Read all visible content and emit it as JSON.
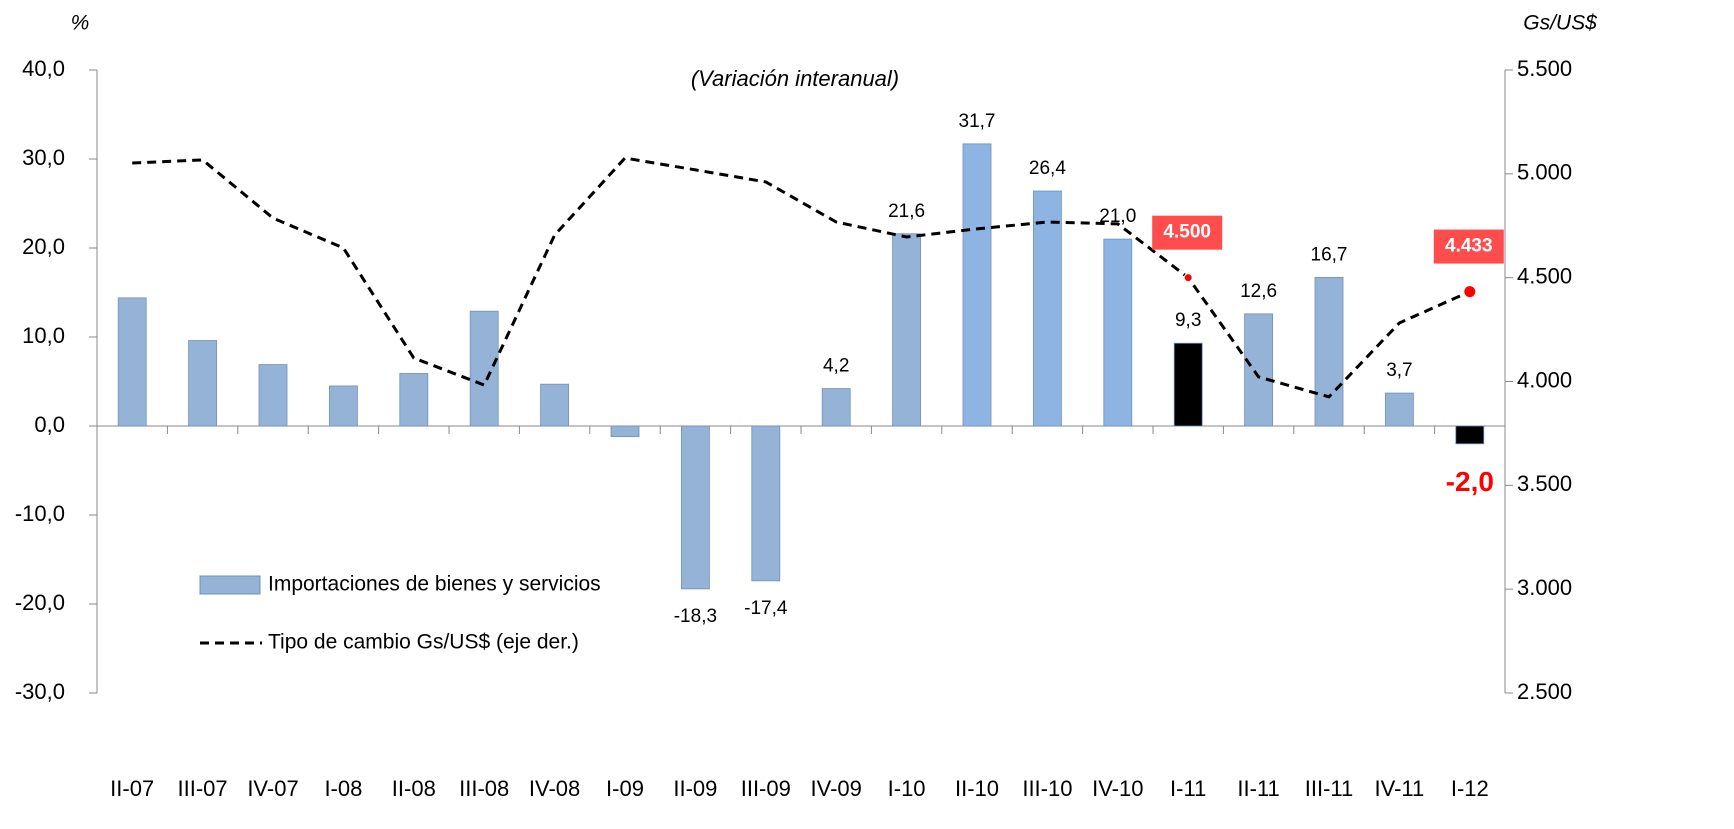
{
  "chart_data": {
    "type": "bar",
    "title": "(Variación interanual)",
    "y_axis_label": "%",
    "y2_axis_label": "Gs/US$",
    "categories": [
      "II-07",
      "III-07",
      "IV-07",
      "I-08",
      "II-08",
      "III-08",
      "IV-08",
      "I-09",
      "II-09",
      "III-09",
      "IV-09",
      "I-10",
      "II-10",
      "III-10",
      "IV-10",
      "I-11",
      "II-11",
      "III-11",
      "IV-11",
      "I-12"
    ],
    "series": [
      {
        "name": "Importaciones de bienes y servicios",
        "type": "bar",
        "color": "#95b3d7",
        "colors": [
          "#95b3d7",
          "#95b3d7",
          "#95b3d7",
          "#95b3d7",
          "#95b3d7",
          "#95b3d7",
          "#95b3d7",
          "#95b3d7",
          "#95b3d7",
          "#95b3d7",
          "#95b3d7",
          "#95b3d7",
          "#8db4e2",
          "#8db4e2",
          "#8db4e2",
          "#000000",
          "#95b3d7",
          "#95b3d7",
          "#95b3d7",
          "#000000"
        ],
        "values": [
          14.4,
          9.6,
          6.9,
          4.5,
          5.9,
          12.9,
          4.7,
          -1.2,
          -18.3,
          -17.4,
          4.2,
          21.6,
          31.7,
          26.4,
          21.0,
          9.3,
          12.6,
          16.7,
          3.7,
          -2.0
        ],
        "value_labels": [
          null,
          null,
          null,
          null,
          null,
          null,
          null,
          null,
          "-18,3",
          "-17,4",
          "4,2",
          "21,6",
          "31,7",
          "26,4",
          "21,0",
          "9,3",
          "12,6",
          "16,7",
          "3,7",
          "-2,0"
        ]
      },
      {
        "name": "Tipo de cambio Gs/US$ (eje der.)",
        "type": "line",
        "axis": "y2",
        "color": "#000000",
        "dash": true,
        "marker_color": "#ff0000",
        "values": [
          5052,
          5067,
          4787,
          4643,
          4113,
          3983,
          4705,
          5076,
          5019,
          4961,
          4768,
          4696,
          4735,
          4768,
          4759,
          4500,
          4022,
          3926,
          4282,
          4433
        ],
        "value_labels": [
          null,
          null,
          null,
          null,
          null,
          null,
          null,
          null,
          null,
          null,
          null,
          null,
          null,
          null,
          null,
          "4.500",
          null,
          null,
          null,
          "4.433"
        ]
      }
    ],
    "ylim": [
      -30,
      40
    ],
    "yticks": [
      {
        "value": -30,
        "label": "-30,0"
      },
      {
        "value": -20,
        "label": "-20,0"
      },
      {
        "value": -10,
        "label": "-10,0"
      },
      {
        "value": 0,
        "label": "0,0"
      },
      {
        "value": 10,
        "label": "10,0"
      },
      {
        "value": 20,
        "label": "20,0"
      },
      {
        "value": 30,
        "label": "30,0"
      },
      {
        "value": 40,
        "label": "40,0"
      }
    ],
    "y2lim": [
      2500,
      5500
    ],
    "y2ticks": [
      {
        "value": 2500,
        "label": "2.500"
      },
      {
        "value": 3000,
        "label": "3.000"
      },
      {
        "value": 3500,
        "label": "3.500"
      },
      {
        "value": 4000,
        "label": "4.000"
      },
      {
        "value": 4500,
        "label": "4.500"
      },
      {
        "value": 5000,
        "label": "5.000"
      },
      {
        "value": 5500,
        "label": "5.500"
      }
    ],
    "legend": "lower-left"
  }
}
